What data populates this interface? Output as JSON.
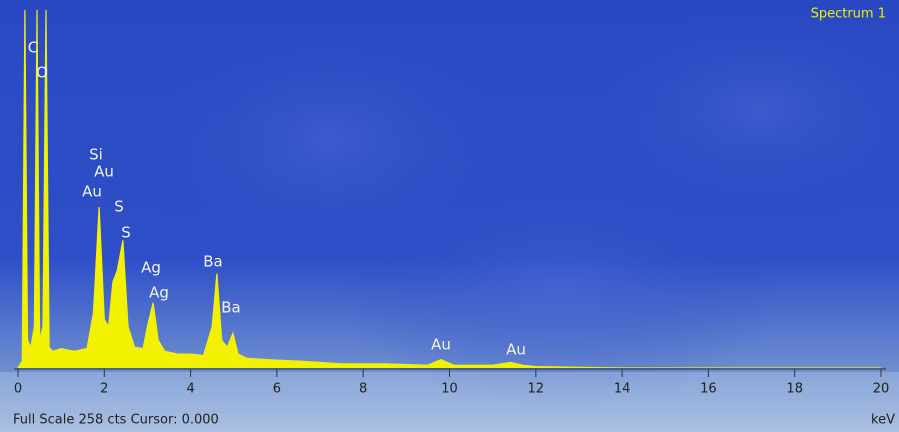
{
  "chart_data": {
    "type": "area",
    "title": "Spectrum 1",
    "x_label": "keV",
    "footer": "Full Scale 258 cts Cursor: 0.000",
    "x": [
      0,
      0.1,
      0.16,
      0.22,
      0.3,
      0.38,
      0.44,
      0.5,
      0.58,
      0.65,
      0.72,
      0.8,
      1.0,
      1.3,
      1.6,
      1.75,
      1.88,
      2.0,
      2.1,
      2.2,
      2.3,
      2.43,
      2.55,
      2.7,
      2.9,
      3.0,
      3.13,
      3.25,
      3.4,
      3.7,
      4.0,
      4.3,
      4.5,
      4.61,
      4.72,
      4.85,
      4.98,
      5.1,
      5.3,
      5.8,
      6.5,
      7.5,
      8.5,
      9.5,
      9.8,
      10.1,
      11.0,
      11.4,
      11.7,
      12,
      14,
      20
    ],
    "series": [
      {
        "color": "#f2f200",
        "values": [
          0,
          5,
          258,
          20,
          15,
          30,
          258,
          20,
          30,
          258,
          15,
          12,
          14,
          12,
          14,
          40,
          116,
          35,
          30,
          62,
          70,
          92,
          30,
          15,
          14,
          30,
          47,
          20,
          12,
          10,
          10,
          9,
          30,
          68,
          20,
          15,
          25,
          10,
          7,
          6,
          5,
          3,
          3,
          2,
          6,
          2,
          2,
          4,
          2,
          1,
          0,
          0
        ]
      }
    ],
    "annotations": [
      "C",
      "O",
      "Si",
      "Au",
      "Au",
      "S",
      "S",
      "Ag",
      "Ag",
      "Ba",
      "Ba",
      "Au",
      "Au"
    ],
    "xlim": [
      0,
      20
    ],
    "ylim": [
      0,
      258
    ],
    "xticks": [
      0,
      2,
      4,
      6,
      8,
      10,
      12,
      14,
      16,
      18,
      20
    ]
  }
}
